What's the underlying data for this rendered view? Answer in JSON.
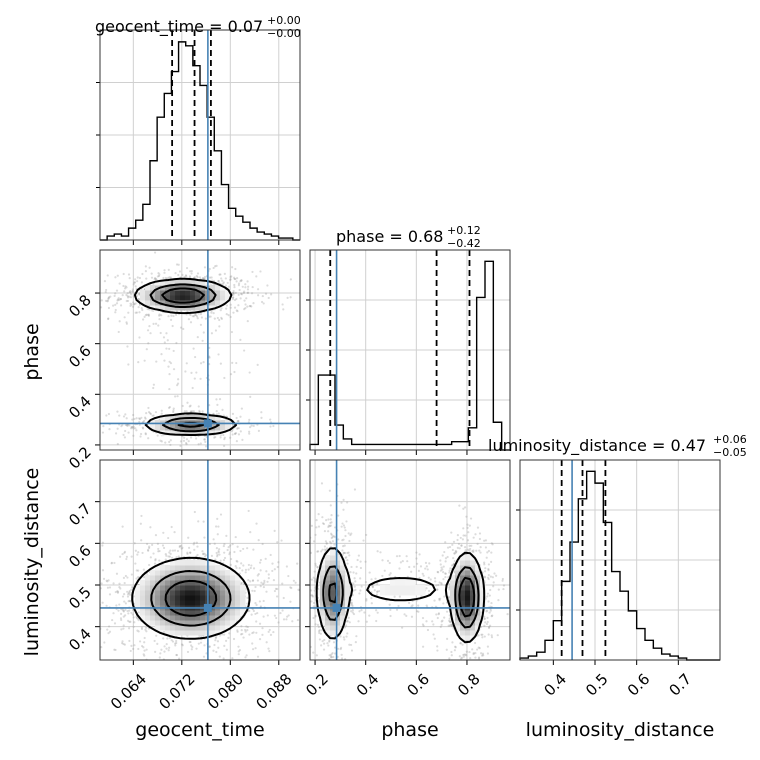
{
  "chart_data": {
    "type": "corner",
    "truth_color": "#4682b4",
    "grid": true,
    "parameters": [
      {
        "name": "geocent_time",
        "axis_label": "geocent_time",
        "range": [
          0.0585,
          0.0915
        ],
        "ticks": [
          0.064,
          0.072,
          0.08,
          0.088
        ],
        "tick_labels": [
          "0.064",
          "0.072",
          "0.080",
          "0.088"
        ],
        "truth": 0.0763,
        "quantiles": [
          0.0704,
          0.0741,
          0.0768
        ],
        "title_main": "geocent_time = 0.07",
        "title_plus": "+0.00",
        "title_minus": "−0.00",
        "histogram": [
          0,
          0.02,
          0.03,
          0.02,
          0.06,
          0.1,
          0.18,
          0.4,
          0.62,
          0.74,
          0.85,
          1.0,
          0.98,
          0.88,
          0.78,
          0.62,
          0.45,
          0.28,
          0.16,
          0.12,
          0.09,
          0.06,
          0.04,
          0.03,
          0.02,
          0.01,
          0.01,
          0.0
        ]
      },
      {
        "name": "phase",
        "axis_label": "phase",
        "range": [
          0.18,
          0.97
        ],
        "ticks": [
          0.2,
          0.4,
          0.6,
          0.8
        ],
        "tick_labels": [
          "0.2",
          "0.4",
          "0.6",
          "0.8"
        ],
        "truth": 0.285,
        "quantiles": [
          0.26,
          0.68,
          0.81
        ],
        "title_main": "phase = 0.68",
        "title_plus": "+0.12",
        "title_minus": "−0.42",
        "histogram": [
          0.02,
          0.27,
          0.27,
          0.09,
          0.04,
          0.02,
          0.02,
          0.02,
          0.02,
          0.02,
          0.02,
          0.02,
          0.02,
          0.02,
          0.02,
          0.02,
          0.02,
          0.03,
          0.03,
          0.08,
          0.55,
          0.68,
          0.1,
          0.0
        ]
      },
      {
        "name": "luminosity_distance",
        "axis_label": "luminosity_distance",
        "range": [
          0.32,
          0.8
        ],
        "ticks": [
          0.4,
          0.5,
          0.6,
          0.7
        ],
        "tick_labels": [
          "0.4",
          "0.5",
          "0.6",
          "0.7"
        ],
        "truth": 0.445,
        "quantiles": [
          0.42,
          0.47,
          0.525
        ],
        "title_main": "luminosity_distance = 0.47",
        "title_plus": "+0.06",
        "title_minus": "−0.05",
        "histogram": [
          0.01,
          0.02,
          0.04,
          0.1,
          0.2,
          0.4,
          0.6,
          0.82,
          0.96,
          0.9,
          0.7,
          0.45,
          0.35,
          0.25,
          0.16,
          0.1,
          0.06,
          0.03,
          0.02,
          0.01,
          0.0,
          0.0,
          0.0,
          0.0
        ]
      }
    ],
    "pairs": [
      {
        "x": "geocent_time",
        "y": "phase",
        "modes": [
          {
            "cx": 0.0722,
            "cy": 0.79,
            "sx": 0.0037,
            "sy": 0.03,
            "w": 0.6
          },
          {
            "cx": 0.0735,
            "cy": 0.28,
            "sx": 0.0037,
            "sy": 0.02,
            "w": 0.3
          },
          {
            "cx": 0.073,
            "cy": 0.52,
            "sx": 0.0032,
            "sy": 0.13,
            "w": 0.1
          }
        ]
      },
      {
        "x": "geocent_time",
        "y": "luminosity_distance",
        "modes": [
          {
            "cx": 0.0735,
            "cy": 0.468,
            "sx": 0.0045,
            "sy": 0.045,
            "w": 1.0
          }
        ]
      },
      {
        "x": "phase",
        "y": "luminosity_distance",
        "modes": [
          {
            "cx": 0.27,
            "cy": 0.48,
            "sx": 0.03,
            "sy": 0.055,
            "w": 0.35
          },
          {
            "cx": 0.8,
            "cy": 0.47,
            "sx": 0.03,
            "sy": 0.05,
            "w": 0.45
          },
          {
            "cx": 0.54,
            "cy": 0.49,
            "sx": 0.15,
            "sy": 0.03,
            "w": 0.2
          }
        ]
      }
    ]
  }
}
